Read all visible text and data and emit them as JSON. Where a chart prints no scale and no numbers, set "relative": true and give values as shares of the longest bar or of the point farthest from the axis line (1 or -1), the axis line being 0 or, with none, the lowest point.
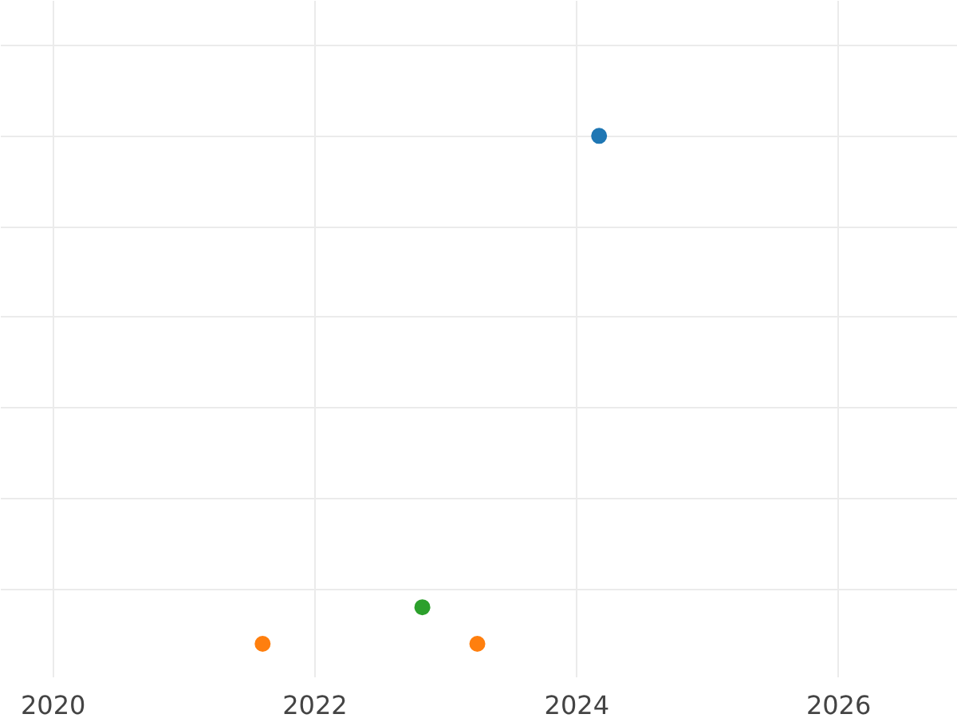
{
  "chart_data": {
    "type": "scatter",
    "relative": true,
    "grid": true,
    "marker": "circle",
    "x": [
      2021.6,
      2022.82,
      2023.24,
      2024.17
    ],
    "xlim": [
      2019.6,
      2026.91
    ],
    "xticks": [
      2020,
      2022,
      2024,
      2026
    ],
    "series": [
      {
        "values": [
          0,
          0.072,
          0,
          1
        ],
        "colors": [
          "#ff7f0e",
          "#2ca02c",
          "#ff7f0e",
          "#1f77b4"
        ]
      }
    ]
  }
}
